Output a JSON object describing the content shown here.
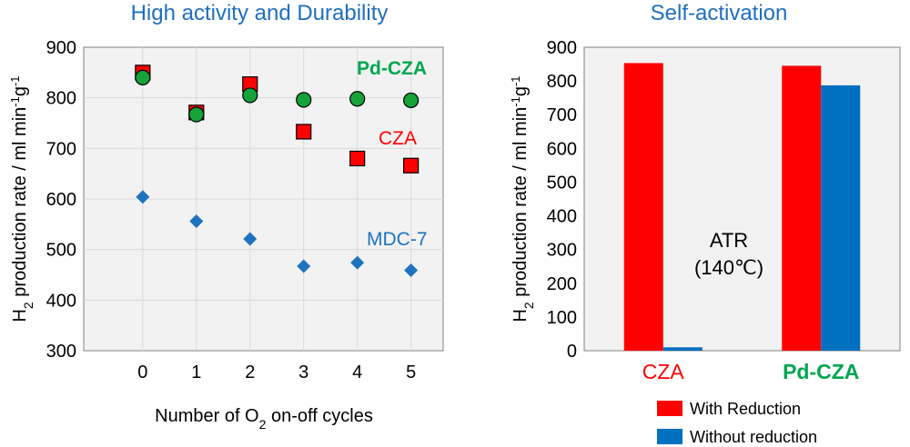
{
  "colors": {
    "cza": "#ff0000",
    "pd_cza": "#00a650",
    "pd_cza_marker": "#16a33a",
    "mdc7": "#1e73be",
    "title": "#1f6fc0",
    "plot_bg": "#f2f2f2",
    "grid": "#d9d9d9",
    "bar_with_reduction": "#ff0000",
    "bar_without_reduction": "#0070c0"
  },
  "chart_data": [
    {
      "type": "scatter",
      "title": "High activity and Durability",
      "xlabel_parts": [
        "Number of O",
        "2",
        " on-off cycles"
      ],
      "ylabel_parts": [
        "H",
        "2",
        " production rate / ml min",
        "-1",
        "g",
        "-1"
      ],
      "x_ticks": [
        "0",
        "1",
        "2",
        "3",
        "4",
        "5"
      ],
      "y_ticks": [
        "300",
        "400",
        "500",
        "600",
        "700",
        "800",
        "900"
      ],
      "xlim": [
        -1.1,
        5.6
      ],
      "ylim": [
        300,
        900
      ],
      "grid": true,
      "series": [
        {
          "name": "Pd-CZA",
          "marker": "circle",
          "x": [
            0,
            1,
            2,
            3,
            4,
            5
          ],
          "y": [
            840,
            767,
            805,
            796,
            798,
            795
          ]
        },
        {
          "name": "CZA",
          "marker": "square",
          "x": [
            0,
            1,
            2,
            3,
            4,
            5
          ],
          "y": [
            850,
            771,
            827,
            733,
            680,
            666
          ]
        },
        {
          "name": "MDC-7",
          "marker": "diamond",
          "x": [
            0,
            1,
            2,
            3,
            4,
            5
          ],
          "y": [
            604,
            556,
            521,
            467,
            474,
            459
          ]
        }
      ],
      "annotations": [
        {
          "text": "Pd-CZA",
          "series": "Pd-CZA"
        },
        {
          "text": "CZA",
          "series": "CZA"
        },
        {
          "text": "MDC-7",
          "series": "MDC-7"
        }
      ]
    },
    {
      "type": "bar",
      "title": "Self-activation",
      "ylabel_parts": [
        "H",
        "2",
        " production rate / ml min",
        "-1",
        "g",
        "-1"
      ],
      "categories": [
        "CZA",
        "Pd-CZA"
      ],
      "y_ticks": [
        "0",
        "100",
        "200",
        "300",
        "400",
        "500",
        "600",
        "700",
        "800",
        "900"
      ],
      "ylim": [
        0,
        900
      ],
      "grid": false,
      "series": [
        {
          "name": "With Reduction",
          "values": [
            853,
            845
          ]
        },
        {
          "name": "Without reduction",
          "values": [
            10,
            787
          ]
        }
      ],
      "annotation_lines": [
        "ATR",
        "(140℃)"
      ],
      "legend_position": "bottom-right"
    }
  ]
}
